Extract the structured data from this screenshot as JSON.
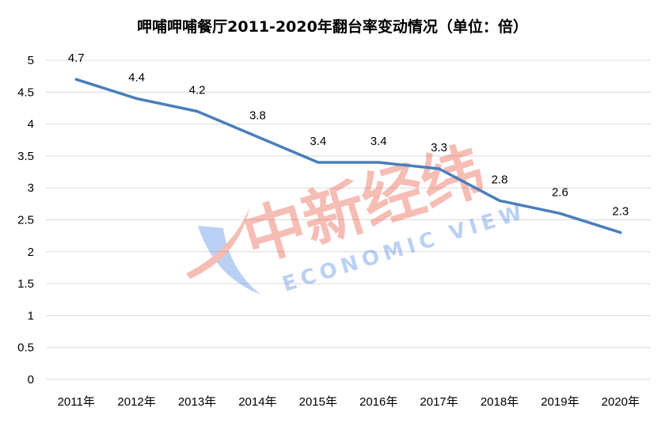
{
  "chart_data": {
    "type": "line",
    "title": "呷哺呷哺餐厅2011-2020年翻台率变动情况（单位：倍）",
    "categories": [
      "2011年",
      "2012年",
      "2013年",
      "2014年",
      "2015年",
      "2016年",
      "2017年",
      "2018年",
      "2019年",
      "2020年"
    ],
    "series": [
      {
        "values": [
          4.7,
          4.4,
          4.2,
          3.8,
          3.4,
          3.4,
          3.3,
          2.8,
          2.6,
          2.3
        ]
      }
    ],
    "data_labels": [
      "4.7",
      "4.4",
      "4.2",
      "3.8",
      "3.4",
      "3.4",
      "3.3",
      "2.8",
      "2.6",
      "2.3"
    ],
    "y_ticks": [
      "0",
      "0.5",
      "1",
      "1.5",
      "2",
      "2.5",
      "3",
      "3.5",
      "4",
      "4.5",
      "5"
    ],
    "ylim": [
      0,
      5
    ],
    "xlabel": "",
    "ylabel": "",
    "grid": true,
    "legend": "none",
    "colors": {
      "line": "#4a7ebb",
      "grid": "#d9d9d9",
      "watermark_blue": "#3d7be0",
      "watermark_red": "#e8452e"
    }
  },
  "watermark": {
    "cn_text": "中新经纬",
    "en_text": "ECONOMIC VIEW"
  }
}
